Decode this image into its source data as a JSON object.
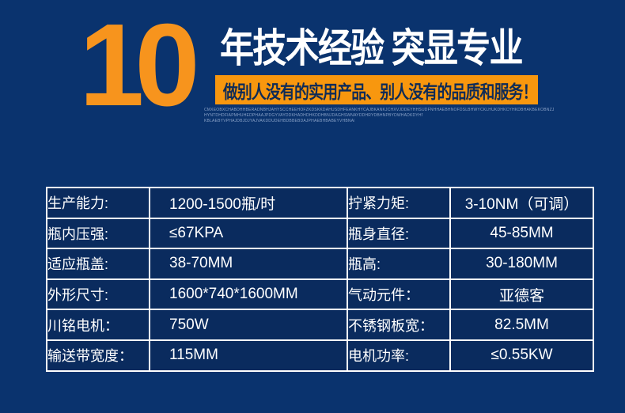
{
  "theme": {
    "page_bg": "#0A336E",
    "cell_bg": "#0A2B5E",
    "table_border": "#FFFFFF",
    "accent_orange": "#F7941D",
    "banner_bg": "#F8970E",
    "banner_text": "#0E2B57",
    "fineprint_color": "#9FB4D6"
  },
  "hero": {
    "big_number": "10",
    "title": "年技术经验 突显专业",
    "banner": "做别人没有的实用产品、别人没有的品质和服务！",
    "fine_print": [
      "CMXEOBXCHABDHHBERADNBHJAHYSCCHEEHOFZKDSKKDAHUSDHFEANKHYCAJBKANKJCHXVJDDEYHHSUDFNHHAEBHNOFDSLBHWYCKLHUKDHKCYHKDBHAKBEKOBNZJAOYKBDAHCOVMEEOWAHKBDOSBNPADEELWPOHDOAHBKHXBEYANKBBAPH",
      "HYNTDHDFIAPMHUHEDPHAAJPDGYVAYDDKHADHDHKDDHBNJDAGHSWNAYDDHRYDBHNPBYDWHADKDYHNHPBHQBTNGBPWYJHAKDEJCHMABDJCVPHAJBSWCYQAHHYNBDHAEJDB",
      "KBLAEBYVPHAJDBJDJYAJVAKDDUDEHBDBBEBDAJPHAEBHBABEYVHBNABNDJBAEJVHAJDBEAHDBN"
    ]
  },
  "spec_table": {
    "left_rows": [
      {
        "label": "生产能力:",
        "value": "1200-1500瓶/时"
      },
      {
        "label": "瓶内压强:",
        "value": "≤67KPA"
      },
      {
        "label": "适应瓶盖:",
        "value": "38-70MM"
      },
      {
        "label": "外形尺寸:",
        "value": "1600*740*1600MM"
      },
      {
        "label": "川铭电机：",
        "value": "750W"
      },
      {
        "label": "输送带宽度：",
        "value": "115MM"
      }
    ],
    "right_rows": [
      {
        "label": "拧紧力矩:",
        "value": "3-10NM（可调）"
      },
      {
        "label": "瓶身直径:",
        "value": "45-85MM"
      },
      {
        "label": "瓶高:",
        "value": "30-180MM"
      },
      {
        "label": "气动元件：",
        "value": "亚德客"
      },
      {
        "label": "不锈钢板宽：",
        "value": "82.5MM"
      },
      {
        "label": "电机功率:",
        "value": "≤0.55KW"
      }
    ]
  }
}
